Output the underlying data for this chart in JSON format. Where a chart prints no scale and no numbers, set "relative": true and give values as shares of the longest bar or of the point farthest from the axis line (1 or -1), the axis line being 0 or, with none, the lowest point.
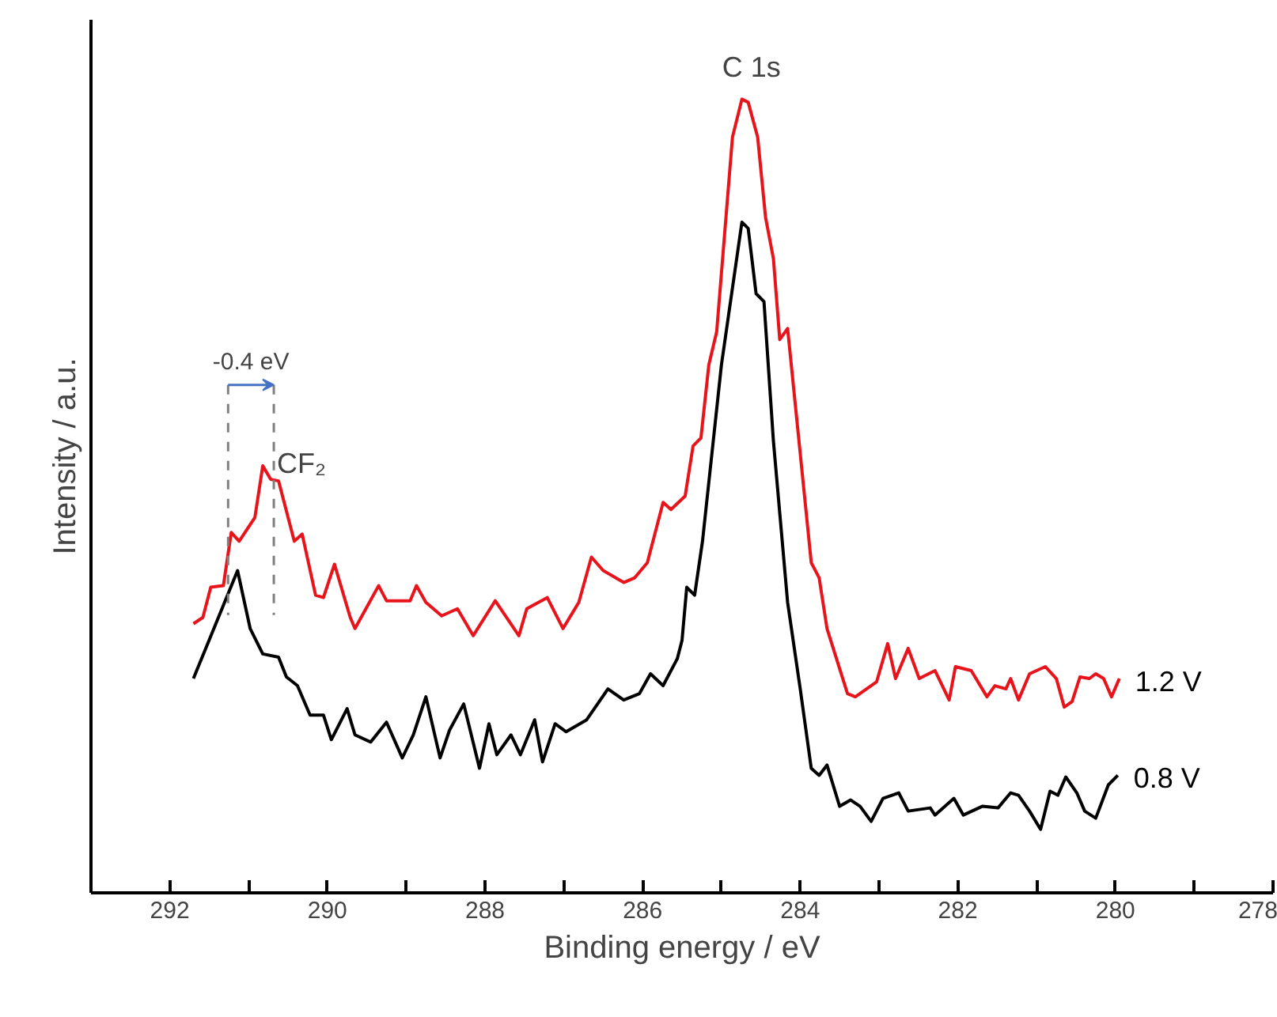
{
  "chart_data": {
    "type": "line",
    "relative": true,
    "xlabel": "Binding energy / eV",
    "ylabel": "Intensity / a.u.",
    "xlim": [
      293,
      278
    ],
    "xticks": [
      292,
      {
        "value": 291,
        "label": null
      },
      290,
      {
        "value": 289,
        "label": null
      },
      288,
      {
        "value": 287,
        "label": null
      },
      286,
      {
        "value": 285,
        "label": null
      },
      284,
      {
        "value": 283,
        "label": null
      },
      282,
      {
        "value": 281,
        "label": null
      },
      280,
      {
        "value": 279,
        "label": null
      },
      278
    ],
    "grid": false,
    "marker": "none",
    "line_style": "solid",
    "series": [
      {
        "name": "1.2 V",
        "color": "#e8141c",
        "x": [
          291.7,
          291.58,
          291.48,
          291.32,
          291.22,
          291.12,
          290.92,
          290.82,
          290.72,
          290.62,
          290.42,
          290.32,
          290.15,
          290.05,
          289.91,
          289.71,
          289.65,
          289.35,
          289.25,
          288.95,
          288.87,
          288.75,
          288.55,
          288.35,
          288.15,
          287.87,
          287.57,
          287.47,
          287.21,
          287.01,
          286.81,
          286.65,
          286.5,
          286.24,
          286.1,
          285.94,
          285.74,
          285.64,
          285.46,
          285.36,
          285.26,
          285.16,
          285.06,
          284.86,
          284.74,
          284.66,
          284.54,
          284.44,
          284.34,
          284.26,
          284.16,
          283.86,
          283.76,
          283.66,
          283.4,
          283.3,
          283.03,
          282.89,
          282.79,
          282.63,
          282.49,
          282.29,
          282.11,
          282.03,
          281.83,
          281.63,
          281.53,
          281.39,
          281.33,
          281.23,
          281.09,
          280.89,
          280.75,
          280.65,
          280.55,
          280.45,
          280.33,
          280.25,
          280.15,
          280.05,
          279.95
        ],
        "values": [
          0.339,
          0.347,
          0.385,
          0.387,
          0.454,
          0.443,
          0.473,
          0.538,
          0.521,
          0.519,
          0.443,
          0.452,
          0.375,
          0.372,
          0.414,
          0.347,
          0.333,
          0.387,
          0.368,
          0.368,
          0.387,
          0.366,
          0.349,
          0.358,
          0.324,
          0.368,
          0.324,
          0.358,
          0.372,
          0.333,
          0.366,
          0.423,
          0.406,
          0.391,
          0.397,
          0.416,
          0.492,
          0.483,
          0.5,
          0.563,
          0.573,
          0.665,
          0.707,
          0.952,
          1.0,
          0.996,
          0.952,
          0.851,
          0.799,
          0.697,
          0.711,
          0.416,
          0.397,
          0.333,
          0.251,
          0.247,
          0.266,
          0.314,
          0.27,
          0.308,
          0.27,
          0.28,
          0.243,
          0.285,
          0.28,
          0.247,
          0.261,
          0.257,
          0.27,
          0.243,
          0.276,
          0.285,
          0.27,
          0.234,
          0.241,
          0.272,
          0.27,
          0.276,
          0.27,
          0.247,
          0.27
        ]
      },
      {
        "name": "0.8 V",
        "color": "#000000",
        "x": [
          291.7,
          291.14,
          290.98,
          290.82,
          290.62,
          290.52,
          290.38,
          290.22,
          290.05,
          289.95,
          289.75,
          289.65,
          289.45,
          289.25,
          289.05,
          288.91,
          288.75,
          288.57,
          288.45,
          288.27,
          288.07,
          287.95,
          287.85,
          287.67,
          287.55,
          287.37,
          287.27,
          287.11,
          286.97,
          286.71,
          286.44,
          286.24,
          286.04,
          285.9,
          285.74,
          285.56,
          285.5,
          285.44,
          285.34,
          285.24,
          285.0,
          284.74,
          284.66,
          284.56,
          284.46,
          284.34,
          284.16,
          284.0,
          283.86,
          283.76,
          283.66,
          283.5,
          283.36,
          283.24,
          283.1,
          282.95,
          282.75,
          282.63,
          282.35,
          282.29,
          282.05,
          281.93,
          281.69,
          281.49,
          281.33,
          281.23,
          281.09,
          280.95,
          280.83,
          280.73,
          280.63,
          280.49,
          280.39,
          280.25,
          280.09,
          279.97
        ],
        "values": [
          0.27,
          0.406,
          0.333,
          0.301,
          0.297,
          0.272,
          0.261,
          0.224,
          0.224,
          0.193,
          0.232,
          0.199,
          0.19,
          0.215,
          0.17,
          0.199,
          0.247,
          0.17,
          0.205,
          0.238,
          0.157,
          0.213,
          0.174,
          0.199,
          0.174,
          0.218,
          0.165,
          0.213,
          0.203,
          0.218,
          0.257,
          0.243,
          0.251,
          0.276,
          0.261,
          0.295,
          0.318,
          0.385,
          0.375,
          0.443,
          0.665,
          0.845,
          0.837,
          0.755,
          0.745,
          0.569,
          0.366,
          0.257,
          0.157,
          0.148,
          0.161,
          0.109,
          0.117,
          0.109,
          0.09,
          0.119,
          0.126,
          0.103,
          0.107,
          0.098,
          0.119,
          0.098,
          0.109,
          0.107,
          0.126,
          0.123,
          0.103,
          0.08,
          0.128,
          0.123,
          0.146,
          0.126,
          0.103,
          0.094,
          0.136,
          0.148
        ]
      }
    ],
    "ref_lines": [
      {
        "axis": "x",
        "value": 291.26,
        "color": "#808080",
        "line_style": "dashed"
      },
      {
        "axis": "x",
        "value": 290.68,
        "color": "#808080",
        "line_style": "dashed",
        "label": "-0.4 eV"
      }
    ],
    "annotations": [
      {
        "text": "C 1s",
        "x": 284.7,
        "y": 1.0
      },
      {
        "text": "CF₂",
        "x": 290.72,
        "y": 0.521
      }
    ]
  }
}
